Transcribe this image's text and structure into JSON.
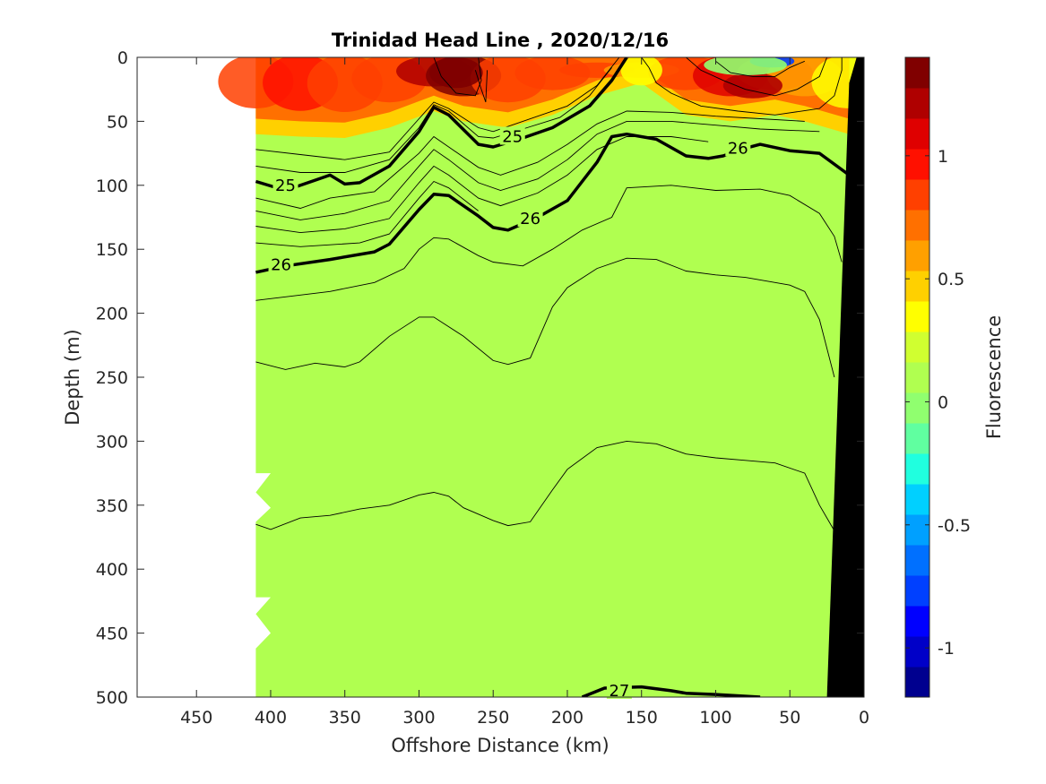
{
  "chart_data": {
    "type": "heatmap",
    "title": "Trinidad Head Line , 2020/12/16",
    "xlabel": "Offshore Distance (km)",
    "ylabel": "Depth (m)",
    "colorbar_label": "Fluorescence",
    "xlim": [
      490,
      0
    ],
    "ylim": [
      0,
      500
    ],
    "clim": [
      -1.2,
      1.4
    ],
    "x_ticks": [
      450,
      400,
      350,
      300,
      250,
      200,
      150,
      100,
      50,
      0
    ],
    "x_tick_labels": [
      "450",
      "400",
      "350",
      "300",
      "250",
      "200",
      "150",
      "100",
      "50",
      "0"
    ],
    "y_ticks": [
      0,
      50,
      100,
      150,
      200,
      250,
      300,
      350,
      400,
      450,
      500
    ],
    "y_tick_labels": [
      "0",
      "50",
      "100",
      "150",
      "200",
      "250",
      "300",
      "350",
      "400",
      "450",
      "500"
    ],
    "colorbar_ticks": [
      -1,
      -0.5,
      0,
      0.5,
      1
    ],
    "colorbar_tick_labels": [
      "-1",
      "-0.5",
      "0",
      "0.5",
      "1"
    ],
    "colormap": [
      "#00008f",
      "#0000c8",
      "#0000ff",
      "#0040ff",
      "#0070ff",
      "#00a0ff",
      "#00d0ff",
      "#20ffdf",
      "#60ffa0",
      "#90ff6f",
      "#b0ff50",
      "#d0ff30",
      "#ffff00",
      "#ffd000",
      "#ffa000",
      "#ff7000",
      "#ff4000",
      "#ff1000",
      "#df0000",
      "#af0000",
      "#800000"
    ],
    "background_value": 0.15,
    "data_extent_x": [
      410,
      0
    ],
    "surface_layer": [
      {
        "x": 410,
        "depth_bottom": 60,
        "value": 0.9
      },
      {
        "x": 380,
        "depth_bottom": 62,
        "value": 1.0
      },
      {
        "x": 350,
        "depth_bottom": 63,
        "value": 0.9
      },
      {
        "x": 320,
        "depth_bottom": 55,
        "value": 0.8
      },
      {
        "x": 290,
        "depth_bottom": 42,
        "value": 1.2
      },
      {
        "x": 270,
        "depth_bottom": 50,
        "value": 1.3
      },
      {
        "x": 240,
        "depth_bottom": 55,
        "value": 0.9
      },
      {
        "x": 210,
        "depth_bottom": 45,
        "value": 0.8
      },
      {
        "x": 180,
        "depth_bottom": 30,
        "value": 0.9
      },
      {
        "x": 150,
        "depth_bottom": 20,
        "value": 0.6
      },
      {
        "x": 120,
        "depth_bottom": 45,
        "value": 0.9
      },
      {
        "x": 90,
        "depth_bottom": 50,
        "value": 1.1
      },
      {
        "x": 60,
        "depth_bottom": 45,
        "value": 0.9
      },
      {
        "x": 40,
        "depth_bottom": 50,
        "value": 0.6
      },
      {
        "x": 10,
        "depth_bottom": 60,
        "value": 0.3
      }
    ],
    "features": [
      {
        "x": 275,
        "depth": 12,
        "rx": 18,
        "ry": 12,
        "value": 1.3
      },
      {
        "x": 75,
        "depth": 22,
        "rx": 20,
        "ry": 10,
        "value": 1.25
      },
      {
        "x": 62,
        "depth": 3,
        "rx": 15,
        "ry": 5,
        "value": -0.8
      },
      {
        "x": 80,
        "depth": 6,
        "rx": 28,
        "ry": 8,
        "value": 0.0
      },
      {
        "x": 150,
        "depth": 10,
        "rx": 14,
        "ry": 12,
        "value": 0.4
      }
    ],
    "density_contours": [
      {
        "level": 25,
        "bold": true,
        "labels": [
          {
            "x": 390,
            "depth": 100,
            "text": "25"
          },
          {
            "x": 237,
            "depth": 62,
            "text": "25"
          }
        ],
        "points": [
          [
            410,
            97
          ],
          [
            390,
            104
          ],
          [
            370,
            96
          ],
          [
            360,
            92
          ],
          [
            350,
            99
          ],
          [
            340,
            98
          ],
          [
            320,
            85
          ],
          [
            300,
            58
          ],
          [
            290,
            39
          ],
          [
            280,
            45
          ],
          [
            260,
            68
          ],
          [
            250,
            70
          ],
          [
            230,
            63
          ],
          [
            210,
            55
          ],
          [
            185,
            38
          ],
          [
            170,
            18
          ],
          [
            160,
            0
          ]
        ]
      },
      {
        "level": 26,
        "bold": true,
        "labels": [
          {
            "x": 393,
            "depth": 162,
            "text": "26"
          },
          {
            "x": 225,
            "depth": 126,
            "text": "26"
          },
          {
            "x": 85,
            "depth": 71,
            "text": "26"
          }
        ],
        "points": [
          [
            410,
            168
          ],
          [
            390,
            163
          ],
          [
            360,
            158
          ],
          [
            330,
            152
          ],
          [
            320,
            146
          ],
          [
            300,
            119
          ],
          [
            290,
            107
          ],
          [
            280,
            108
          ],
          [
            260,
            124
          ],
          [
            250,
            133
          ],
          [
            240,
            135
          ],
          [
            220,
            125
          ],
          [
            200,
            112
          ],
          [
            180,
            82
          ],
          [
            170,
            62
          ],
          [
            160,
            60
          ],
          [
            140,
            64
          ],
          [
            120,
            77
          ],
          [
            105,
            79
          ],
          [
            95,
            77
          ],
          [
            80,
            71
          ],
          [
            70,
            68
          ],
          [
            50,
            73
          ],
          [
            30,
            75
          ],
          [
            10,
            92
          ]
        ]
      },
      {
        "level": 27,
        "bold": true,
        "labels": [
          {
            "x": 165,
            "depth": 495,
            "text": "27"
          }
        ],
        "points": [
          [
            190,
            500
          ],
          [
            175,
            493
          ],
          [
            150,
            492
          ],
          [
            130,
            495
          ],
          [
            120,
            497
          ],
          [
            100,
            498
          ],
          [
            70,
            500
          ]
        ]
      }
    ],
    "thin_contours": [
      [
        [
          410,
          72
        ],
        [
          380,
          76
        ],
        [
          350,
          80
        ],
        [
          320,
          74
        ],
        [
          300,
          48
        ],
        [
          290,
          35
        ],
        [
          280,
          40
        ],
        [
          260,
          55
        ],
        [
          250,
          58
        ],
        [
          230,
          50
        ],
        [
          200,
          38
        ],
        [
          180,
          22
        ],
        [
          165,
          0
        ]
      ],
      [
        [
          410,
          85
        ],
        [
          380,
          90
        ],
        [
          350,
          90
        ],
        [
          320,
          80
        ],
        [
          300,
          55
        ],
        [
          290,
          37
        ],
        [
          280,
          42
        ],
        [
          260,
          62
        ],
        [
          250,
          63
        ],
        [
          230,
          56
        ],
        [
          205,
          47
        ],
        [
          185,
          30
        ],
        [
          170,
          8
        ]
      ],
      [
        [
          410,
          110
        ],
        [
          380,
          118
        ],
        [
          360,
          110
        ],
        [
          330,
          105
        ],
        [
          300,
          75
        ],
        [
          290,
          62
        ],
        [
          280,
          70
        ],
        [
          260,
          86
        ],
        [
          245,
          92
        ],
        [
          220,
          82
        ],
        [
          200,
          68
        ],
        [
          180,
          52
        ],
        [
          160,
          42
        ],
        [
          130,
          43
        ],
        [
          100,
          46
        ],
        [
          70,
          48
        ],
        [
          40,
          50
        ]
      ],
      [
        [
          410,
          120
        ],
        [
          380,
          127
        ],
        [
          350,
          122
        ],
        [
          320,
          112
        ],
        [
          300,
          85
        ],
        [
          290,
          72
        ],
        [
          280,
          80
        ],
        [
          260,
          98
        ],
        [
          245,
          104
        ],
        [
          220,
          95
        ],
        [
          200,
          80
        ],
        [
          180,
          60
        ],
        [
          160,
          50
        ],
        [
          130,
          50
        ],
        [
          100,
          53
        ],
        [
          70,
          56
        ],
        [
          30,
          58
        ]
      ],
      [
        [
          410,
          132
        ],
        [
          380,
          137
        ],
        [
          350,
          134
        ],
        [
          320,
          126
        ],
        [
          300,
          98
        ],
        [
          290,
          85
        ],
        [
          280,
          92
        ],
        [
          260,
          110
        ],
        [
          245,
          116
        ],
        [
          220,
          106
        ],
        [
          200,
          92
        ],
        [
          180,
          72
        ],
        [
          160,
          62
        ],
        [
          130,
          62
        ],
        [
          105,
          66
        ]
      ],
      [
        [
          410,
          145
        ],
        [
          380,
          148
        ],
        [
          340,
          145
        ],
        [
          320,
          138
        ],
        [
          300,
          110
        ],
        [
          290,
          97
        ],
        [
          280,
          102
        ],
        [
          260,
          120
        ]
      ],
      [
        [
          410,
          190
        ],
        [
          360,
          183
        ],
        [
          330,
          176
        ],
        [
          310,
          165
        ],
        [
          300,
          150
        ],
        [
          290,
          141
        ],
        [
          280,
          142
        ],
        [
          260,
          155
        ],
        [
          250,
          160
        ],
        [
          230,
          163
        ],
        [
          210,
          150
        ],
        [
          190,
          135
        ],
        [
          170,
          125
        ],
        [
          160,
          102
        ],
        [
          130,
          100
        ],
        [
          100,
          104
        ],
        [
          70,
          103
        ],
        [
          50,
          108
        ],
        [
          30,
          122
        ],
        [
          20,
          140
        ],
        [
          15,
          160
        ]
      ],
      [
        [
          410,
          238
        ],
        [
          390,
          244
        ],
        [
          370,
          239
        ],
        [
          350,
          242
        ],
        [
          340,
          238
        ],
        [
          320,
          218
        ],
        [
          300,
          203
        ],
        [
          290,
          203
        ],
        [
          270,
          218
        ],
        [
          250,
          237
        ],
        [
          240,
          240
        ],
        [
          225,
          235
        ],
        [
          210,
          195
        ],
        [
          200,
          180
        ],
        [
          180,
          165
        ],
        [
          160,
          157
        ],
        [
          140,
          158
        ],
        [
          120,
          167
        ],
        [
          100,
          170
        ],
        [
          80,
          172
        ],
        [
          50,
          178
        ],
        [
          40,
          183
        ],
        [
          30,
          205
        ],
        [
          20,
          250
        ]
      ],
      [
        [
          410,
          365
        ],
        [
          400,
          369
        ],
        [
          380,
          360
        ],
        [
          360,
          358
        ],
        [
          340,
          353
        ],
        [
          320,
          350
        ],
        [
          300,
          342
        ],
        [
          290,
          340
        ],
        [
          280,
          343
        ],
        [
          270,
          352
        ],
        [
          250,
          362
        ],
        [
          240,
          366
        ],
        [
          225,
          363
        ],
        [
          210,
          338
        ],
        [
          200,
          322
        ],
        [
          180,
          305
        ],
        [
          160,
          300
        ],
        [
          140,
          302
        ],
        [
          120,
          310
        ],
        [
          100,
          313
        ],
        [
          80,
          315
        ],
        [
          60,
          317
        ],
        [
          40,
          325
        ],
        [
          30,
          350
        ],
        [
          20,
          370
        ],
        [
          10,
          380
        ]
      ]
    ],
    "top_contours": [
      [
        [
          290,
          0
        ],
        [
          285,
          15
        ],
        [
          275,
          28
        ],
        [
          262,
          30
        ],
        [
          258,
          18
        ],
        [
          260,
          0
        ]
      ],
      [
        [
          262,
          10
        ],
        [
          258,
          25
        ],
        [
          255,
          35
        ],
        [
          254,
          10
        ]
      ],
      [
        [
          150,
          0
        ],
        [
          145,
          8
        ],
        [
          140,
          20
        ],
        [
          130,
          28
        ],
        [
          110,
          38
        ],
        [
          85,
          42
        ],
        [
          60,
          45
        ],
        [
          30,
          40
        ],
        [
          20,
          30
        ],
        [
          15,
          10
        ],
        [
          15,
          0
        ]
      ],
      [
        [
          120,
          0
        ],
        [
          110,
          10
        ],
        [
          95,
          18
        ],
        [
          80,
          25
        ],
        [
          60,
          30
        ],
        [
          45,
          25
        ],
        [
          30,
          15
        ],
        [
          25,
          0
        ]
      ],
      [
        [
          100,
          3
        ],
        [
          90,
          12
        ],
        [
          75,
          15
        ],
        [
          60,
          15
        ],
        [
          50,
          8
        ],
        [
          40,
          3
        ]
      ]
    ],
    "bathymetry": [
      [
        0,
        0
      ],
      [
        -5,
        500
      ],
      [
        25,
        500
      ],
      [
        10,
        20
      ],
      [
        5,
        0
      ]
    ],
    "masked_edge_x": 410,
    "masked_notches": [
      [
        400,
        325
      ],
      [
        410,
        340
      ],
      [
        400,
        352
      ],
      [
        410,
        363
      ],
      [
        400,
        422
      ],
      [
        410,
        435
      ],
      [
        400,
        450
      ],
      [
        410,
        462
      ]
    ]
  }
}
